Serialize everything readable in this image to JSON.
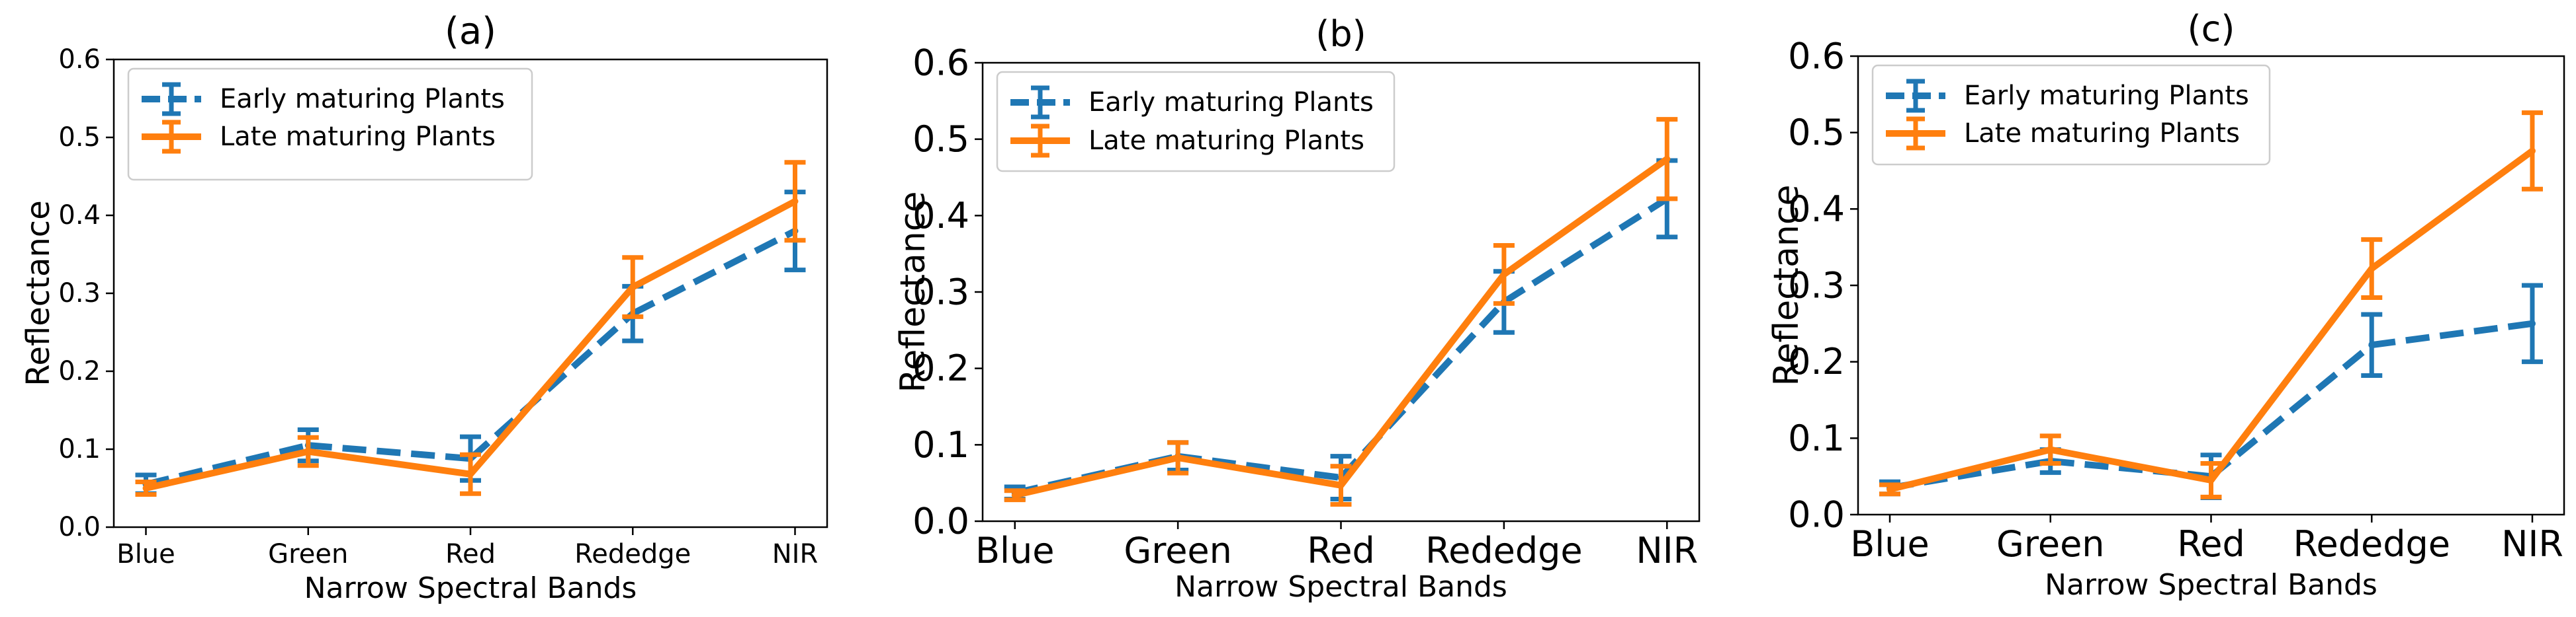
{
  "chart_data": [
    {
      "type": "line",
      "panel": "a",
      "title": "(a)",
      "xlabel": "Narrow Spectral Bands",
      "ylabel": "Reflectance",
      "ylim": [
        0.0,
        0.6
      ],
      "yticks": [
        "0.0",
        "0.1",
        "0.2",
        "0.3",
        "0.4",
        "0.5",
        "0.6"
      ],
      "categories": [
        "Blue",
        "Green",
        "Red",
        "Rededge",
        "NIR"
      ],
      "legend_position": "top-left",
      "series": [
        {
          "name": "Early maturing Plants",
          "color": "#1f77b4",
          "style": "dashed",
          "values": [
            0.055,
            0.105,
            0.088,
            0.274,
            0.38
          ],
          "errors": [
            0.012,
            0.02,
            0.028,
            0.035,
            0.05
          ]
        },
        {
          "name": "Late maturing Plants",
          "color": "#ff7f0e",
          "style": "solid",
          "values": [
            0.05,
            0.097,
            0.068,
            0.308,
            0.418
          ],
          "errors": [
            0.008,
            0.018,
            0.025,
            0.038,
            0.05
          ]
        }
      ]
    },
    {
      "type": "line",
      "panel": "b",
      "title": "(b)",
      "xlabel": "Narrow Spectral Bands",
      "ylabel": "Reflectance",
      "ylim": [
        0.0,
        0.6
      ],
      "yticks": [
        "0.0",
        "0.1",
        "0.2",
        "0.3",
        "0.4",
        "0.5",
        "0.6"
      ],
      "categories": [
        "Blue",
        "Green",
        "Red",
        "Rededge",
        "NIR"
      ],
      "legend_position": "top-left",
      "series": [
        {
          "name": "Early maturing Plants",
          "color": "#1f77b4",
          "style": "dashed",
          "values": [
            0.037,
            0.085,
            0.057,
            0.287,
            0.422
          ],
          "errors": [
            0.008,
            0.018,
            0.028,
            0.04,
            0.05
          ]
        },
        {
          "name": "Late maturing Plants",
          "color": "#ff7f0e",
          "style": "solid",
          "values": [
            0.034,
            0.083,
            0.047,
            0.323,
            0.474
          ],
          "errors": [
            0.006,
            0.02,
            0.025,
            0.038,
            0.052
          ]
        }
      ]
    },
    {
      "type": "line",
      "panel": "c",
      "title": "(c)",
      "xlabel": "Narrow Spectral Bands",
      "ylabel": "Reflectance",
      "ylim": [
        0.0,
        0.6
      ],
      "yticks": [
        "0.0",
        "0.1",
        "0.2",
        "0.3",
        "0.4",
        "0.5",
        "0.6"
      ],
      "categories": [
        "Blue",
        "Green",
        "Red",
        "Rededge",
        "NIR"
      ],
      "legend_position": "top-left",
      "series": [
        {
          "name": "Early maturing Plants",
          "color": "#1f77b4",
          "style": "dashed",
          "values": [
            0.035,
            0.07,
            0.05,
            0.222,
            0.25
          ],
          "errors": [
            0.008,
            0.015,
            0.028,
            0.04,
            0.05
          ]
        },
        {
          "name": "Late maturing Plants",
          "color": "#ff7f0e",
          "style": "solid",
          "values": [
            0.033,
            0.085,
            0.045,
            0.322,
            0.476
          ],
          "errors": [
            0.006,
            0.018,
            0.022,
            0.038,
            0.05
          ]
        }
      ]
    }
  ]
}
